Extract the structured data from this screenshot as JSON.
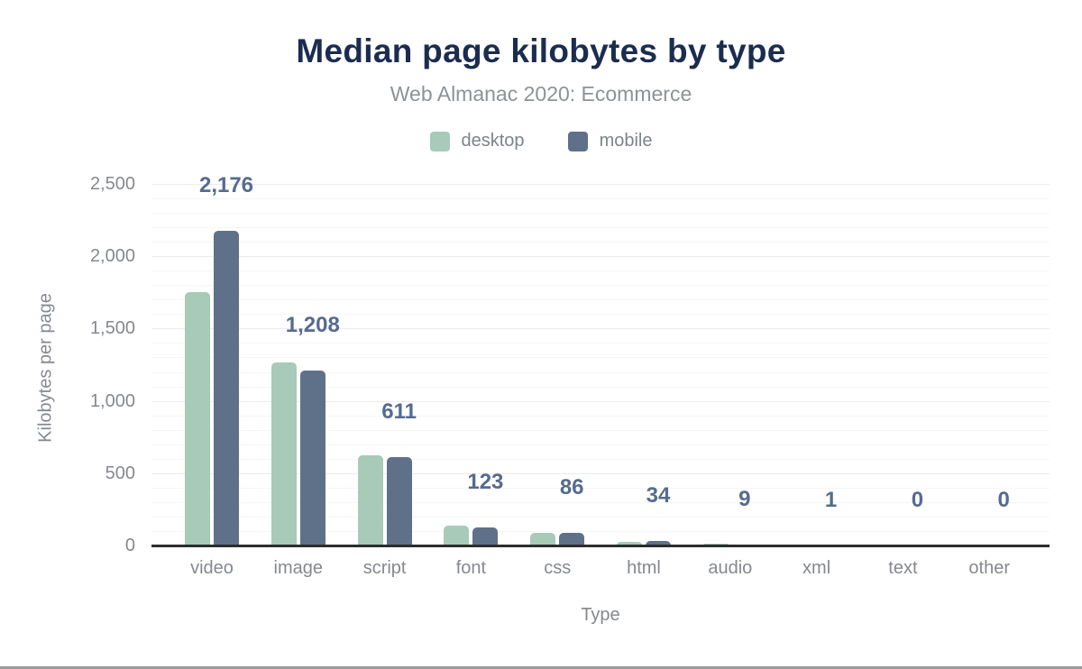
{
  "header": {
    "title": "Median page kilobytes by type",
    "subtitle": "Web Almanac 2020: Ecommerce"
  },
  "colors": {
    "title": "#1b2d4f",
    "subtitle": "#8e9297",
    "legend_text": "#7e838a",
    "axis_text": "#85898f",
    "data_label": "#566b8f",
    "axis_line": "#2d2d2d",
    "grid_major": "#ebebee",
    "grid_minor": "#f6f6f8",
    "desktop_bar": "#a8cab8",
    "mobile_bar": "#5f7089",
    "page_bottom_border": "#9b9b9b"
  },
  "chart_data": {
    "type": "bar",
    "title": "Median page kilobytes by type",
    "subtitle": "Web Almanac 2020: Ecommerce",
    "categories": [
      "video",
      "image",
      "script",
      "font",
      "css",
      "html",
      "audio",
      "xml",
      "text",
      "other"
    ],
    "series": [
      {
        "name": "desktop",
        "color": "#a8cab8",
        "values": [
          1750,
          1266,
          623,
          137,
          88,
          26,
          14,
          1,
          0,
          0
        ]
      },
      {
        "name": "mobile",
        "color": "#5f7089",
        "values": [
          2176,
          1208,
          611,
          123,
          86,
          34,
          9,
          1,
          0,
          0
        ]
      }
    ],
    "data_labels": {
      "series": "mobile",
      "values": [
        "2,176",
        "1,208",
        "611",
        "123",
        "86",
        "34",
        "9",
        "1",
        "0",
        "0"
      ]
    },
    "xlabel": "Type",
    "ylabel": "Kilobytes per page",
    "ylim": [
      0,
      2500
    ],
    "yticks": [
      0,
      500,
      1000,
      1500,
      2000,
      2500
    ],
    "ytick_labels": [
      "0",
      "500",
      "1,000",
      "1,500",
      "2,000",
      "2,500"
    ],
    "grid": {
      "minor_step": 100,
      "major_step": 500,
      "orientation": "horizontal"
    },
    "legend_position": "top-center"
  }
}
